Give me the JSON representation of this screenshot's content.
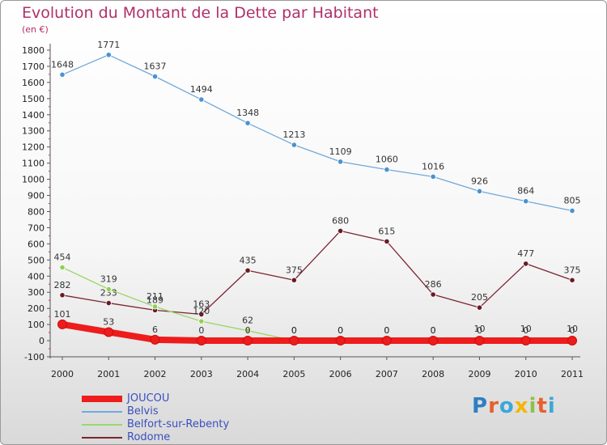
{
  "title": "Evolution du Montant de la Dette par Habitant",
  "unit": "(en €)",
  "logo": {
    "text": "Proxiti",
    "colors": [
      "#2f7fc1",
      "#e8602c",
      "#3aa8d8",
      "#f2b705",
      "#8bc34a",
      "#e8602c",
      "#3aa8d8"
    ]
  },
  "chart_data": {
    "type": "line",
    "title": "Evolution du Montant de la Dette par Habitant",
    "ylabel": "(en €)",
    "x": [
      "2000",
      "2001",
      "2002",
      "2003",
      "2004",
      "2005",
      "2006",
      "2007",
      "2008",
      "2009",
      "2010",
      "2011"
    ],
    "yticks": [
      -100,
      0,
      100,
      200,
      300,
      400,
      500,
      600,
      700,
      800,
      900,
      1000,
      1100,
      1200,
      1300,
      1400,
      1500,
      1600,
      1700,
      1800
    ],
    "ylim": [
      -100,
      1800
    ],
    "grid": false,
    "legend_position": "bottom-left",
    "series": [
      {
        "name": "Belvis",
        "color": "#4a93cf",
        "line_color": "#6fa8dc",
        "values": [
          1648,
          1771,
          1637,
          1494,
          1348,
          1213,
          1109,
          1060,
          1016,
          926,
          864,
          805
        ],
        "labels": [
          "1648",
          "1771",
          "1637",
          "1494",
          "1348",
          "1213",
          "1109",
          "1060",
          "1016",
          "926",
          "864",
          "805"
        ]
      },
      {
        "name": "Rodome",
        "color": "#6b1a24",
        "line_color": "#7a2530",
        "values": [
          282,
          233,
          189,
          163,
          435,
          375,
          680,
          615,
          286,
          205,
          477,
          375
        ],
        "labels": [
          "282",
          "233",
          "189",
          "163",
          "435",
          "375",
          "680",
          "615",
          "286",
          "205",
          "477",
          "375"
        ]
      },
      {
        "name": "Belfort-sur-Rebenty",
        "color": "#8fd14f",
        "line_color": "#9ad86a",
        "values": [
          454,
          319,
          211,
          120,
          62,
          0,
          0,
          0,
          0,
          10,
          10,
          10
        ],
        "labels": [
          "454",
          "319",
          "211",
          "120",
          "62",
          "0",
          "0",
          "0",
          "0",
          "10",
          "10",
          "10"
        ]
      },
      {
        "name": "JOUCOU",
        "color": "#ee1c1c",
        "line_color": "#ee1c1c",
        "values": [
          101,
          53,
          6,
          0,
          0,
          0,
          0,
          0,
          0,
          0,
          0,
          0
        ],
        "labels": [
          "101",
          "53",
          "6",
          "0",
          "0",
          "0",
          "0",
          "0",
          "0",
          "0",
          "0",
          "0"
        ]
      }
    ],
    "legend": [
      "JOUCOU",
      "Belvis",
      "Belfort-sur-Rebenty",
      "Rodome"
    ]
  }
}
